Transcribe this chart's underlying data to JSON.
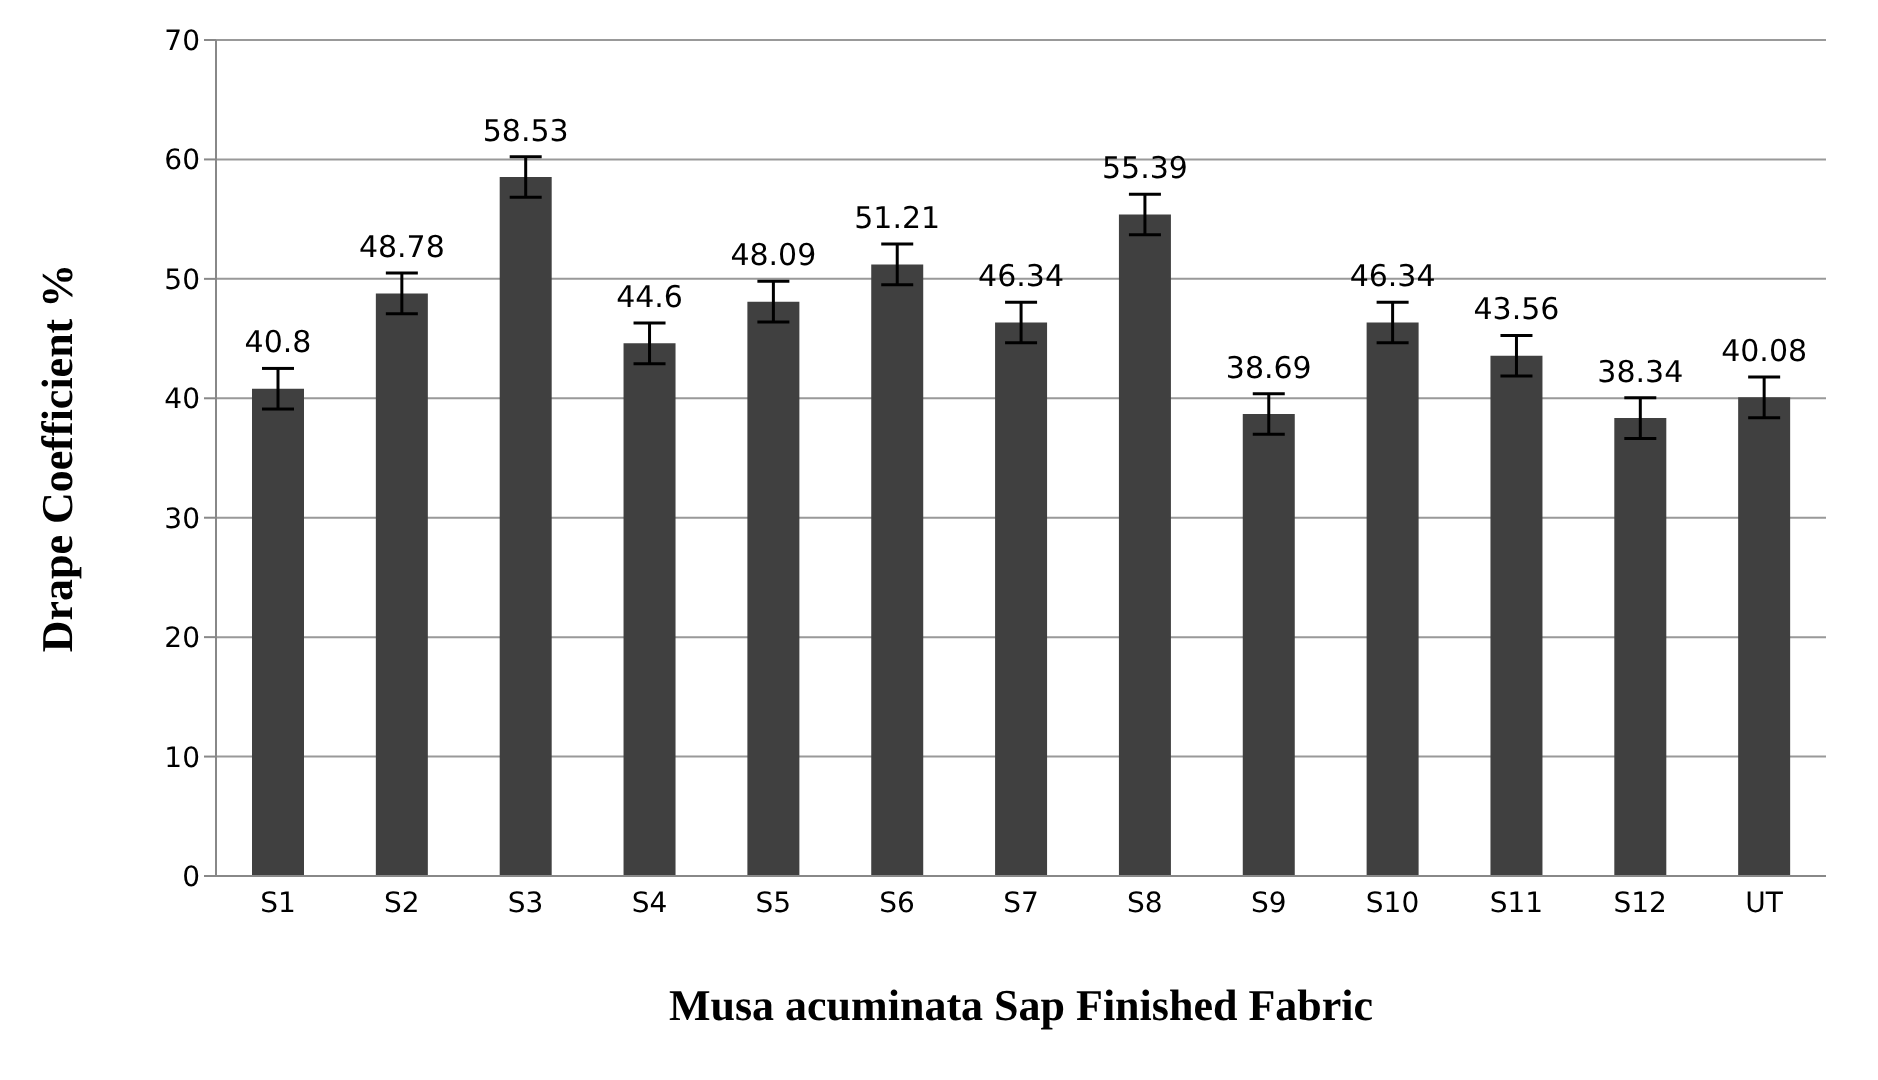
{
  "chart_data": {
    "type": "bar",
    "xlabel": "Musa acuminata Sap Finished Fabric",
    "ylabel": "Drape Coefficient %",
    "categories": [
      "S1",
      "S2",
      "S3",
      "S4",
      "S5",
      "S6",
      "S7",
      "S8",
      "S9",
      "S10",
      "S11",
      "S12",
      "UT"
    ],
    "values": [
      40.8,
      48.78,
      58.53,
      44.6,
      48.09,
      51.21,
      46.34,
      55.39,
      38.69,
      46.34,
      43.56,
      38.34,
      40.08
    ],
    "errors": [
      1.7,
      1.7,
      1.7,
      1.7,
      1.7,
      1.7,
      1.7,
      1.7,
      1.7,
      1.7,
      1.7,
      1.7,
      1.7
    ],
    "color": "#404040",
    "ylim": [
      0,
      70
    ],
    "yticks": [
      0,
      10,
      20,
      30,
      40,
      50,
      60,
      70
    ],
    "grid": "y",
    "data_labels": true
  }
}
